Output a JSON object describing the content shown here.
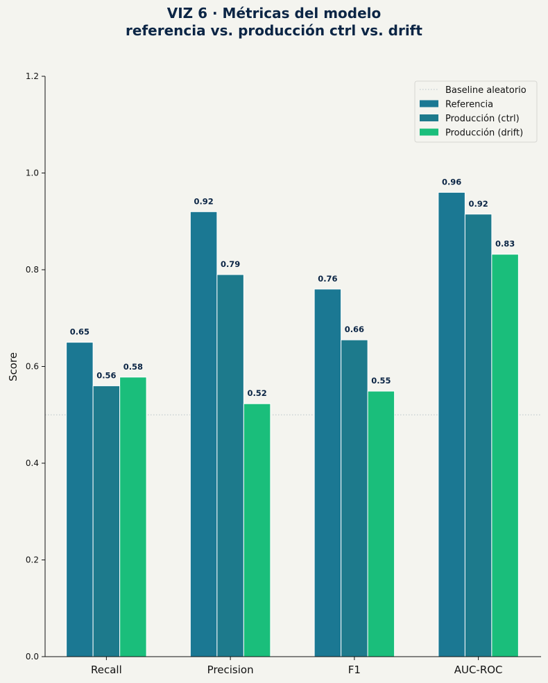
{
  "chart_data": {
    "type": "bar",
    "title_line1": "VIZ 6 · Métricas del modelo",
    "title_line2": "referencia vs. producción ctrl vs. drift",
    "ylabel": "Score",
    "xlabel": "",
    "ylim": [
      0,
      1.2
    ],
    "yticks": [
      "0.0",
      "0.2",
      "0.4",
      "0.6",
      "0.8",
      "1.0",
      "1.2"
    ],
    "categories": [
      "Recall",
      "Precision",
      "F1",
      "AUC-ROC"
    ],
    "series": [
      {
        "name": "Referencia",
        "color": "#1b7893",
        "values": [
          0.65,
          0.92,
          0.76,
          0.96
        ],
        "labels": [
          "0.65",
          "0.92",
          "0.76",
          "0.96"
        ]
      },
      {
        "name": "Producción (ctrl)",
        "color": "#1d7a8c",
        "values": [
          0.56,
          0.79,
          0.655,
          0.915
        ],
        "labels": [
          "0.56",
          "0.79",
          "0.66",
          "0.92"
        ]
      },
      {
        "name": "Producción (drift)",
        "color": "#1abe7b",
        "values": [
          0.578,
          0.523,
          0.549,
          0.832
        ],
        "labels": [
          "0.58",
          "0.52",
          "0.55",
          "0.83"
        ]
      }
    ],
    "baseline": {
      "name": "Baseline aleatorio",
      "value": 0.5,
      "color": "#b8c4c8"
    },
    "legend_position": "top-right",
    "grid": false
  }
}
